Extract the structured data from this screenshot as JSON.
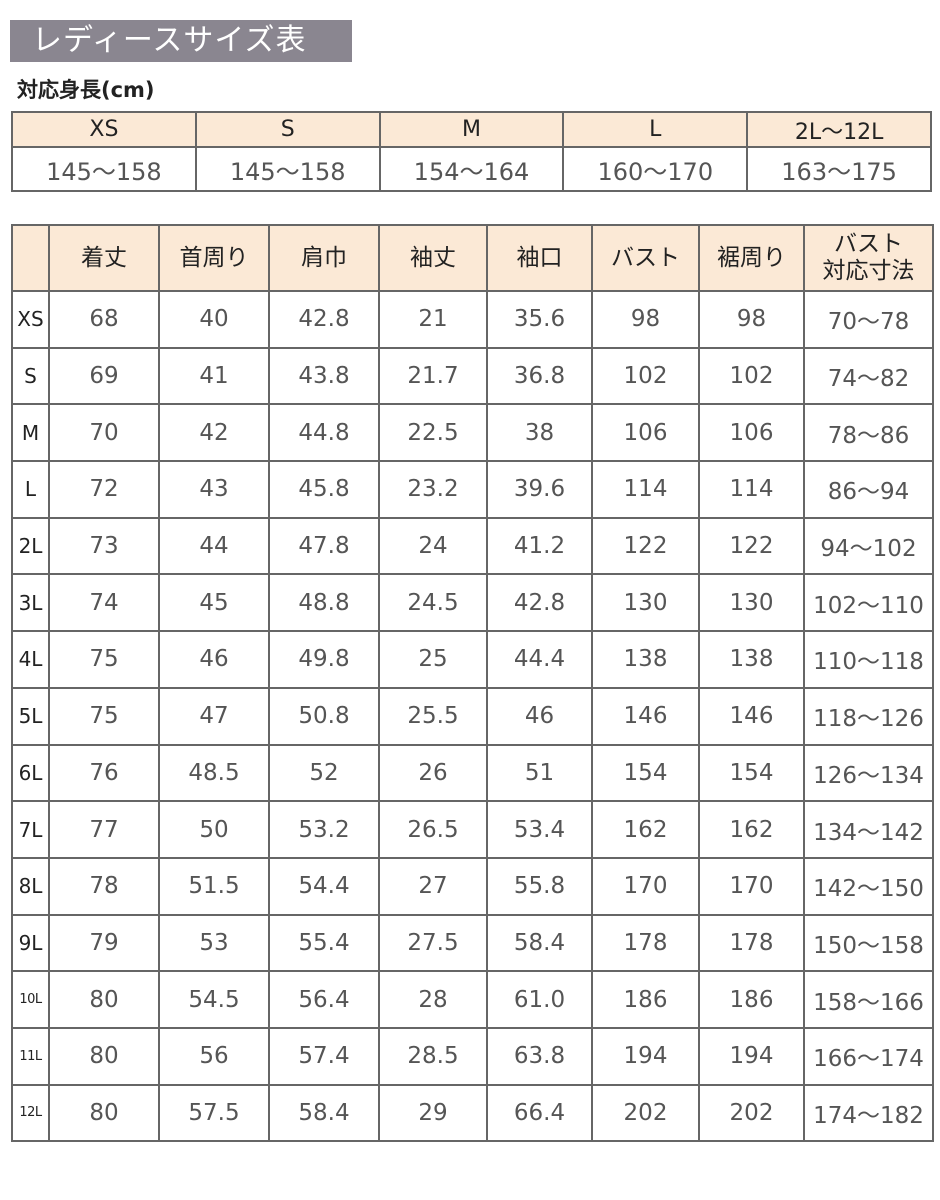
{
  "title": "レディースサイズ表",
  "height_section": {
    "label": "対応身長(cm)",
    "sizes": [
      "XS",
      "S",
      "M",
      "L",
      "2L〜12L"
    ],
    "heights": [
      "145〜158",
      "145〜158",
      "154〜164",
      "160〜170",
      "163〜175"
    ]
  },
  "size_table": {
    "headers": [
      "",
      "着丈",
      "首周り",
      "肩巾",
      "袖丈",
      "袖口",
      "バスト",
      "裾周り",
      "バスト\n対応寸法"
    ],
    "rows": [
      {
        "size": "XS",
        "values": [
          "68",
          "40",
          "42.8",
          "21",
          "35.6",
          "98",
          "98",
          "70〜78"
        ]
      },
      {
        "size": "S",
        "values": [
          "69",
          "41",
          "43.8",
          "21.7",
          "36.8",
          "102",
          "102",
          "74〜82"
        ]
      },
      {
        "size": "M",
        "values": [
          "70",
          "42",
          "44.8",
          "22.5",
          "38",
          "106",
          "106",
          "78〜86"
        ]
      },
      {
        "size": "L",
        "values": [
          "72",
          "43",
          "45.8",
          "23.2",
          "39.6",
          "114",
          "114",
          "86〜94"
        ]
      },
      {
        "size": "2L",
        "values": [
          "73",
          "44",
          "47.8",
          "24",
          "41.2",
          "122",
          "122",
          "94〜102"
        ]
      },
      {
        "size": "3L",
        "values": [
          "74",
          "45",
          "48.8",
          "24.5",
          "42.8",
          "130",
          "130",
          "102〜110"
        ]
      },
      {
        "size": "4L",
        "values": [
          "75",
          "46",
          "49.8",
          "25",
          "44.4",
          "138",
          "138",
          "110〜118"
        ]
      },
      {
        "size": "5L",
        "values": [
          "75",
          "47",
          "50.8",
          "25.5",
          "46",
          "146",
          "146",
          "118〜126"
        ]
      },
      {
        "size": "6L",
        "values": [
          "76",
          "48.5",
          "52",
          "26",
          "51",
          "154",
          "154",
          "126〜134"
        ]
      },
      {
        "size": "7L",
        "values": [
          "77",
          "50",
          "53.2",
          "26.5",
          "53.4",
          "162",
          "162",
          "134〜142"
        ]
      },
      {
        "size": "8L",
        "values": [
          "78",
          "51.5",
          "54.4",
          "27",
          "55.8",
          "170",
          "170",
          "142〜150"
        ]
      },
      {
        "size": "9L",
        "values": [
          "79",
          "53",
          "55.4",
          "27.5",
          "58.4",
          "178",
          "178",
          "150〜158"
        ]
      },
      {
        "size": "10L",
        "values": [
          "80",
          "54.5",
          "56.4",
          "28",
          "61.0",
          "186",
          "186",
          "158〜166"
        ]
      },
      {
        "size": "11L",
        "values": [
          "80",
          "56",
          "57.4",
          "28.5",
          "63.8",
          "194",
          "194",
          "166〜174"
        ]
      },
      {
        "size": "12L",
        "values": [
          "80",
          "57.5",
          "58.4",
          "29",
          "66.4",
          "202",
          "202",
          "174〜182"
        ]
      }
    ]
  }
}
